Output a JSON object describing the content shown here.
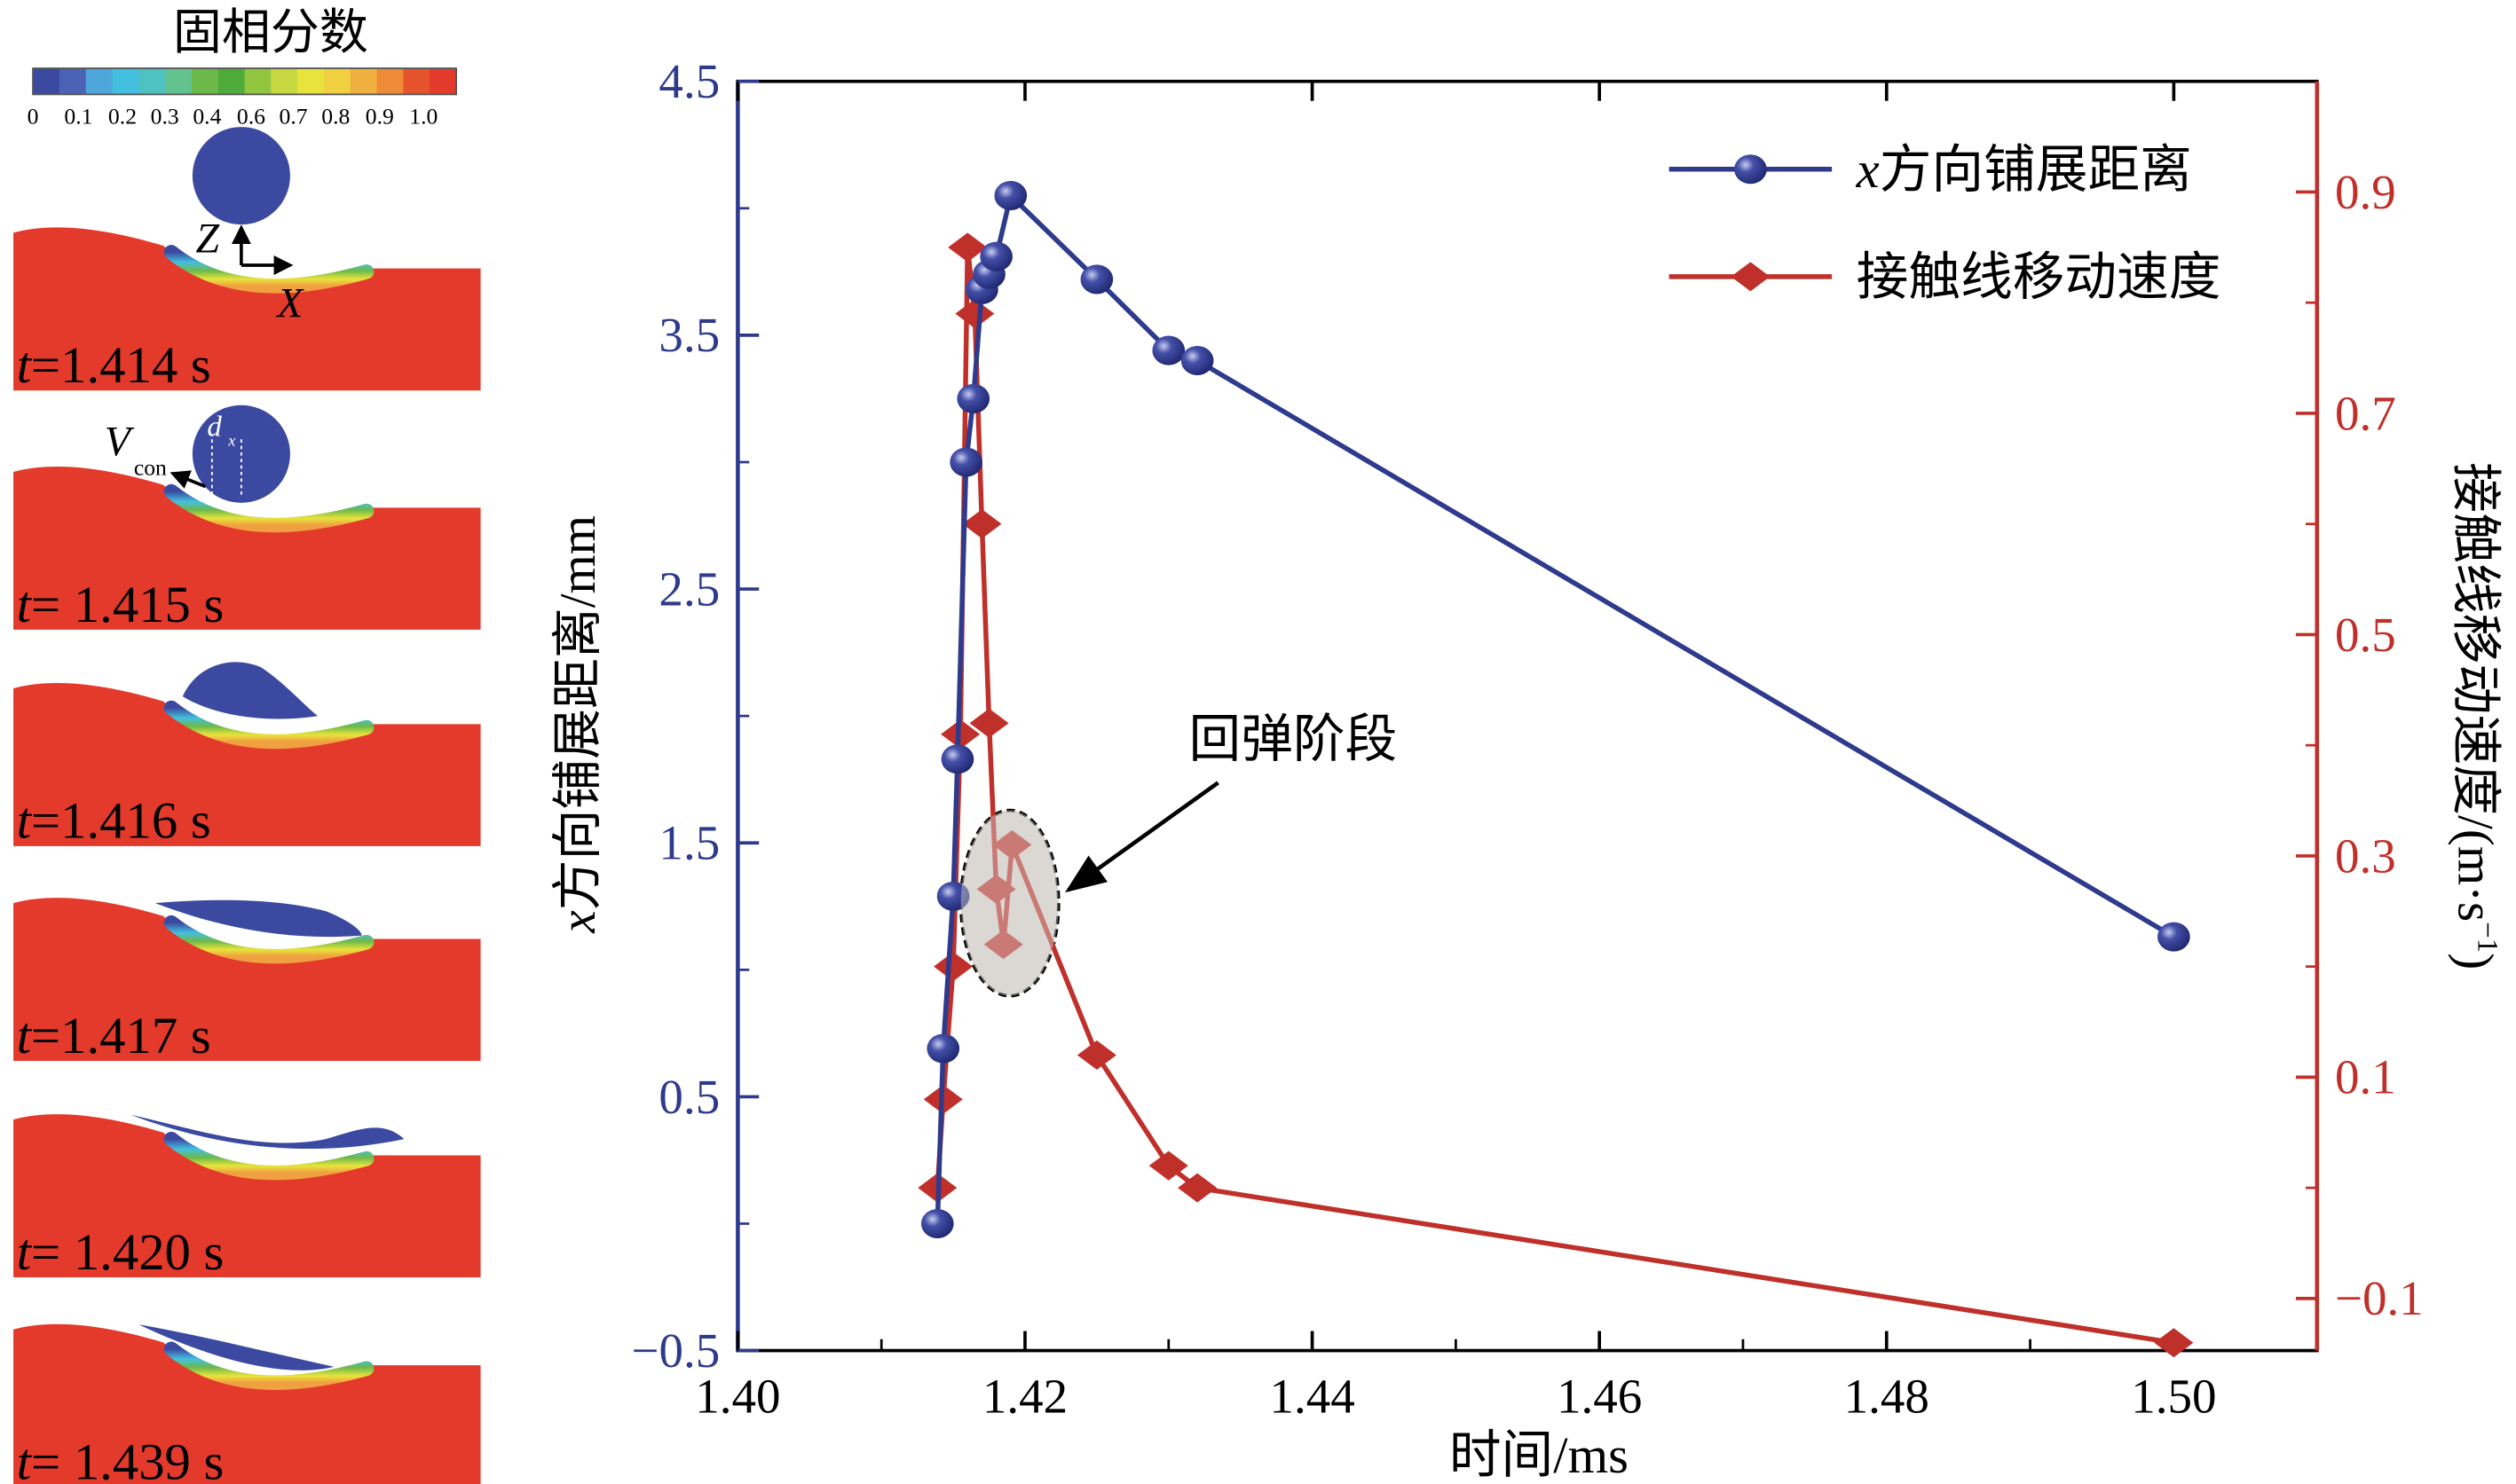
{
  "colorbar": {
    "title": "固相分数",
    "tick_labels": [
      "0",
      "0.1",
      "0.2",
      "0.3",
      "0.4",
      "0.6",
      "0.7",
      "0.8",
      "0.9",
      "1.0"
    ],
    "colors": [
      "#3b4aa0",
      "#4a63b5",
      "#4fa6dc",
      "#43c0e0",
      "#4dc2c0",
      "#62c38e",
      "#6cb94a",
      "#50ac3a",
      "#92c640",
      "#c8d840",
      "#e8e43c",
      "#f0d040",
      "#f0b040",
      "#ef8a36",
      "#e4532c",
      "#e33a2c"
    ]
  },
  "snapshots": [
    {
      "label_t": "t",
      "label_val": "=1.414 s",
      "annotations": [
        "Z",
        "X"
      ]
    },
    {
      "label_t": "t",
      "label_val": "= 1.415 s",
      "annotations": [
        "V",
        "con",
        "d",
        "x"
      ]
    },
    {
      "label_t": "t",
      "label_val": "=1.416 s"
    },
    {
      "label_t": "t",
      "label_val": "=1.417 s"
    },
    {
      "label_t": "t",
      "label_val": "= 1.420 s"
    },
    {
      "label_t": "t",
      "label_val": "= 1.439 s"
    }
  ],
  "chart_data": {
    "type": "line",
    "xlabel": "时间/ms",
    "ylabel_left_var": "x",
    "ylabel_left": "方向铺展距离/mm",
    "ylabel_right": "接触线移动速度/(m·s",
    "ylabel_right_sup": "−1",
    "ylabel_right_end": ")",
    "xlim": [
      1.4,
      1.51
    ],
    "ylim_left": [
      -0.5,
      4.5
    ],
    "ylim_right": [
      -0.15,
      1.0
    ],
    "x_ticks": [
      "1.40",
      "1.42",
      "1.44",
      "1.46",
      "1.48",
      "1.50"
    ],
    "y_left_ticks": [
      "4.5",
      "3.5",
      "2.5",
      "1.5",
      "0.5",
      "−0.5"
    ],
    "y_right_ticks": [
      "0.9",
      "0.7",
      "0.5",
      "0.3",
      "0.1",
      "−0.1"
    ],
    "legend_placement": "top-right",
    "annotation": "回弹阶段",
    "series": [
      {
        "name_var": "x",
        "name": "方向铺展距离",
        "axis": "left",
        "color": "#2e3a8c",
        "marker": "sphere",
        "x": [
          1.4139,
          1.4143,
          1.415,
          1.4153,
          1.4159,
          1.4164,
          1.417,
          1.4175,
          1.418,
          1.419,
          1.425,
          1.43,
          1.432,
          1.5
        ],
        "y": [
          0.0,
          0.69,
          1.29,
          1.83,
          3.0,
          3.25,
          3.68,
          3.74,
          3.81,
          4.05,
          3.72,
          3.44,
          3.4,
          1.13
        ]
      },
      {
        "name": "接触线移动速度",
        "axis": "right",
        "color": "#c0302a",
        "marker": "diamond",
        "x": [
          1.4139,
          1.4143,
          1.415,
          1.4155,
          1.416,
          1.4165,
          1.417,
          1.4175,
          1.418,
          1.4185,
          1.4191,
          1.425,
          1.43,
          1.432,
          1.5
        ],
        "y": [
          0.0,
          0.08,
          0.2,
          0.41,
          0.85,
          0.79,
          0.6,
          0.42,
          0.27,
          0.22,
          0.31,
          0.12,
          0.02,
          0.0,
          -0.14
        ]
      }
    ]
  }
}
